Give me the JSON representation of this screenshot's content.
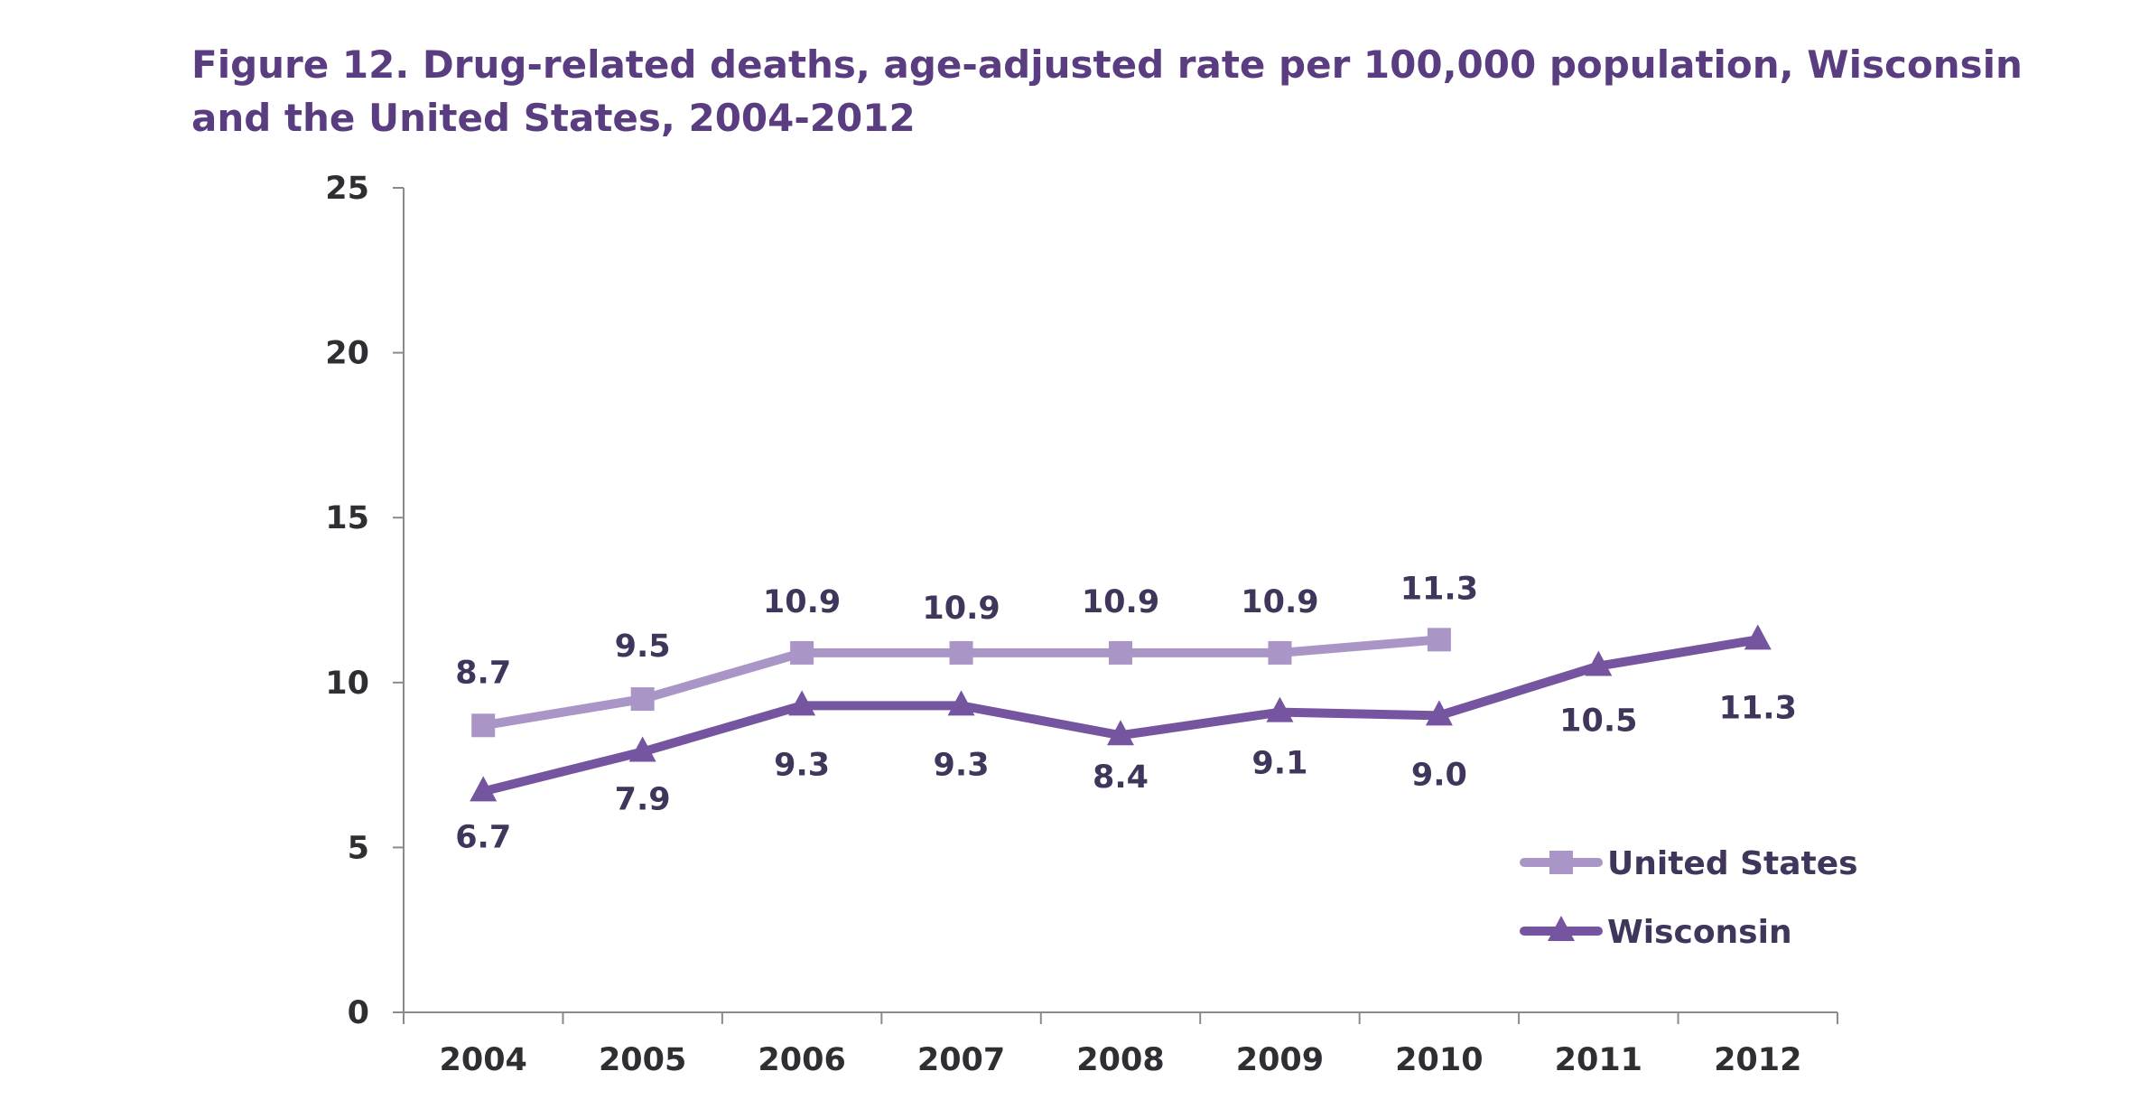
{
  "title": "Figure 12.  Drug-related deaths, age-adjusted rate per 100,000 population, Wisconsin and the United States, 2004-2012",
  "chart_data": {
    "type": "line",
    "title": "Figure 12.  Drug-related deaths, age-adjusted rate per 100,000 population, Wisconsin and the United States, 2004-2012",
    "xlabel": "",
    "ylabel": "",
    "categories": [
      "2004",
      "2005",
      "2006",
      "2007",
      "2008",
      "2009",
      "2010",
      "2011",
      "2012"
    ],
    "ylim": [
      0,
      25
    ],
    "yticks": [
      0,
      5,
      10,
      15,
      20,
      25
    ],
    "grid": false,
    "legend_position": "bottom-right",
    "series": [
      {
        "name": "United States",
        "marker": "square",
        "color": "#a996c6",
        "values": [
          8.7,
          9.5,
          10.9,
          10.9,
          10.9,
          10.9,
          11.3,
          null,
          null
        ],
        "labels": [
          "8.7",
          "9.5",
          "10.9",
          "10.9",
          "10.9",
          "10.9",
          "11.3",
          null,
          null
        ]
      },
      {
        "name": "Wisconsin",
        "marker": "triangle",
        "color": "#7554a0",
        "values": [
          6.7,
          7.9,
          9.3,
          9.3,
          8.4,
          9.1,
          9.0,
          10.5,
          11.3
        ],
        "labels": [
          "6.7",
          "7.9",
          "9.3",
          "9.3",
          "8.4",
          "9.1",
          "9.0",
          "10.5",
          "11.3"
        ]
      }
    ]
  }
}
